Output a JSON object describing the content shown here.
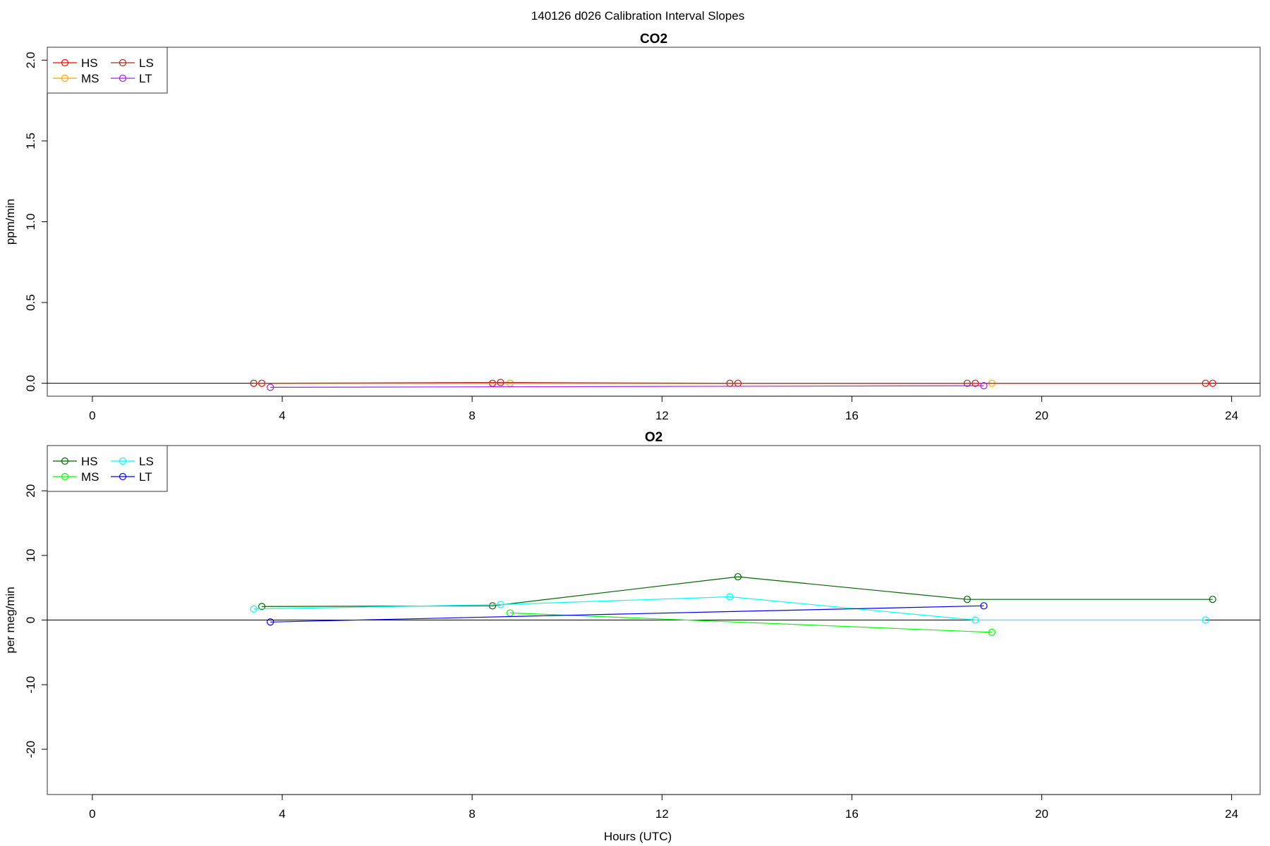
{
  "figure": {
    "title": "140126   d026   Calibration Interval Slopes",
    "xlabel": "Hours (UTC)"
  },
  "chart_data": [
    {
      "type": "line",
      "title": "CO2",
      "xlabel": "",
      "ylabel": "ppm/min",
      "xlim": [
        -0.95,
        24.6
      ],
      "ylim": [
        -0.08,
        2.08
      ],
      "xticks": [
        0,
        4,
        8,
        12,
        16,
        20,
        24
      ],
      "yticks": [
        0.0,
        0.5,
        1.0,
        1.5,
        2.0
      ],
      "ytick_labels": [
        "0.0",
        "0.5",
        "1.0",
        "1.5",
        "2.0"
      ],
      "zero_line": true,
      "grid": false,
      "legend": {
        "position": "top-left",
        "columns": 2
      },
      "series": [
        {
          "name": "HS",
          "color": "#ff0000",
          "x": [
            3.57,
            8.43,
            13.6,
            18.6,
            23.6
          ],
          "y": [
            0.0,
            0.0,
            0.0,
            0.0,
            0.0
          ]
        },
        {
          "name": "MS",
          "color": "#ffa500",
          "x": [
            3.4,
            8.8,
            13.43,
            18.95,
            23.45
          ],
          "y": [
            0.0,
            0.0,
            0.0,
            0.0,
            0.0
          ]
        },
        {
          "name": "LS",
          "color": "#a52a2a",
          "x": [
            3.4,
            8.6,
            13.43,
            18.43,
            23.45
          ],
          "y": [
            0.0,
            0.005,
            0.0,
            0.0,
            0.0
          ]
        },
        {
          "name": "LT",
          "color": "#a020f0",
          "x": [
            3.75,
            18.78
          ],
          "y": [
            -0.025,
            -0.015
          ]
        }
      ]
    },
    {
      "type": "line",
      "title": "O2",
      "xlabel": "Hours (UTC)",
      "ylabel": "per meg/min",
      "xlim": [
        -0.95,
        24.6
      ],
      "ylim": [
        -27,
        27
      ],
      "xticks": [
        0,
        4,
        8,
        12,
        16,
        20,
        24
      ],
      "yticks": [
        -20,
        -10,
        0,
        10,
        20
      ],
      "ytick_labels": [
        "-20",
        "-10",
        "0",
        "10",
        "20"
      ],
      "zero_line": true,
      "grid": false,
      "legend": {
        "position": "top-left",
        "columns": 2
      },
      "series": [
        {
          "name": "HS",
          "color": "#006400",
          "x": [
            3.57,
            8.43,
            13.6,
            18.43,
            23.6
          ],
          "y": [
            2.1,
            2.2,
            6.7,
            3.2,
            3.2
          ]
        },
        {
          "name": "MS",
          "color": "#00ff00",
          "x": [
            8.8,
            18.95
          ],
          "y": [
            1.1,
            -1.9
          ]
        },
        {
          "name": "LS",
          "color": "#00ffff",
          "x": [
            3.4,
            8.6,
            13.43,
            18.6,
            23.45
          ],
          "y": [
            1.7,
            2.4,
            3.6,
            0.0,
            0.0
          ]
        },
        {
          "name": "LT",
          "color": "#0000ff",
          "x": [
            3.75,
            18.78
          ],
          "y": [
            -0.3,
            2.2
          ]
        }
      ]
    }
  ]
}
